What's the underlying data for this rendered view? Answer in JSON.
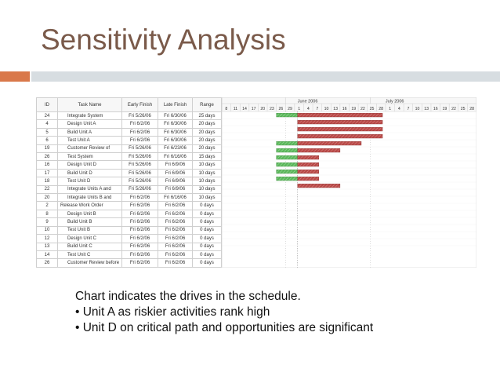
{
  "slide": {
    "title": "Sensitivity Analysis",
    "accent_color": "#d9784a",
    "rule_color": "#d7dde1"
  },
  "table": {
    "headers": [
      "ID",
      "Task Name",
      "Early Finish",
      "Late Finish",
      "Range"
    ],
    "rows": [
      {
        "id": "24",
        "name": "Integrate System",
        "early": "Fri 5/26/06",
        "late": "Fri 6/30/06",
        "range": "25 days",
        "indent": 1
      },
      {
        "id": "4",
        "name": "Design Unit A",
        "early": "Fri 6/2/06",
        "late": "Fri 6/30/06",
        "range": "20 days",
        "indent": 1
      },
      {
        "id": "5",
        "name": "Build Unit A",
        "early": "Fri 6/2/06",
        "late": "Fri 6/30/06",
        "range": "20 days",
        "indent": 1
      },
      {
        "id": "6",
        "name": "Test Unit A",
        "early": "Fri 6/2/06",
        "late": "Fri 6/30/06",
        "range": "20 days",
        "indent": 1
      },
      {
        "id": "19",
        "name": "Customer Review of",
        "early": "Fri 5/26/06",
        "late": "Fri 6/23/06",
        "range": "20 days",
        "indent": 1
      },
      {
        "id": "26",
        "name": "Test System",
        "early": "Fri 5/26/06",
        "late": "Fri 6/16/06",
        "range": "15 days",
        "indent": 1
      },
      {
        "id": "16",
        "name": "Design Unit D",
        "early": "Fri 5/26/06",
        "late": "Fri 6/9/06",
        "range": "10 days",
        "indent": 1
      },
      {
        "id": "17",
        "name": "Build Unit D",
        "early": "Fri 5/26/06",
        "late": "Fri 6/9/06",
        "range": "10 days",
        "indent": 1
      },
      {
        "id": "18",
        "name": "Test Unit D",
        "early": "Fri 5/26/06",
        "late": "Fri 6/9/06",
        "range": "10 days",
        "indent": 1
      },
      {
        "id": "22",
        "name": "Integrate Units A and",
        "early": "Fri 5/26/06",
        "late": "Fri 6/9/06",
        "range": "10 days",
        "indent": 1
      },
      {
        "id": "20",
        "name": "Integrate Units B and",
        "early": "Fri 6/2/06",
        "late": "Fri 6/16/06",
        "range": "10 days",
        "indent": 1
      },
      {
        "id": "2",
        "name": "Release Work Order",
        "early": "Fri 6/2/06",
        "late": "Fri 6/2/06",
        "range": "0 days",
        "indent": 0
      },
      {
        "id": "8",
        "name": "Design Unit B",
        "early": "Fri 6/2/06",
        "late": "Fri 6/2/06",
        "range": "0 days",
        "indent": 1
      },
      {
        "id": "9",
        "name": "Build Unit B",
        "early": "Fri 6/2/06",
        "late": "Fri 6/2/06",
        "range": "0 days",
        "indent": 1
      },
      {
        "id": "10",
        "name": "Test Unit B",
        "early": "Fri 6/2/06",
        "late": "Fri 6/2/06",
        "range": "0 days",
        "indent": 1
      },
      {
        "id": "12",
        "name": "Design Unit C",
        "early": "Fri 6/2/06",
        "late": "Fri 6/2/06",
        "range": "0 days",
        "indent": 1
      },
      {
        "id": "13",
        "name": "Build Unit C",
        "early": "Fri 6/2/06",
        "late": "Fri 6/2/06",
        "range": "0 days",
        "indent": 1
      },
      {
        "id": "14",
        "name": "Test Unit C",
        "early": "Fri 6/2/06",
        "late": "Fri 6/2/06",
        "range": "0 days",
        "indent": 1
      },
      {
        "id": "26",
        "name": "Customer Review before",
        "early": "Fri 6/2/06",
        "late": "Fri 6/2/06",
        "range": "0 days",
        "indent": 1
      }
    ]
  },
  "chart_data": {
    "type": "gantt",
    "month_labels": [
      "June 2006",
      "July 2006"
    ],
    "day_labels": [
      "8",
      "11",
      "14",
      "17",
      "20",
      "23",
      "26",
      "29",
      "1",
      "4",
      "7",
      "10",
      "13",
      "16",
      "19",
      "22",
      "25",
      "28",
      "1",
      "4",
      "7",
      "10",
      "13",
      "16",
      "19",
      "22",
      "25",
      "28"
    ],
    "status_line_label": "1",
    "green_color": "#5cb85c",
    "red_color": "#b94a48",
    "bars": [
      {
        "id": "24",
        "green": [
          "5/26/06",
          "6/2/06"
        ],
        "red": [
          "6/2/06",
          "6/30/06"
        ]
      },
      {
        "id": "4",
        "red": [
          "6/2/06",
          "6/30/06"
        ]
      },
      {
        "id": "5",
        "red": [
          "6/2/06",
          "6/30/06"
        ]
      },
      {
        "id": "6",
        "red": [
          "6/2/06",
          "6/30/06"
        ]
      },
      {
        "id": "19",
        "green": [
          "5/26/06",
          "6/2/06"
        ],
        "red": [
          "6/2/06",
          "6/23/06"
        ]
      },
      {
        "id": "26",
        "green": [
          "5/26/06",
          "6/2/06"
        ],
        "red": [
          "6/2/06",
          "6/16/06"
        ]
      },
      {
        "id": "16",
        "green": [
          "5/26/06",
          "6/2/06"
        ],
        "red": [
          "6/2/06",
          "6/9/06"
        ]
      },
      {
        "id": "17",
        "green": [
          "5/26/06",
          "6/2/06"
        ],
        "red": [
          "6/2/06",
          "6/9/06"
        ]
      },
      {
        "id": "18",
        "green": [
          "5/26/06",
          "6/2/06"
        ],
        "red": [
          "6/2/06",
          "6/9/06"
        ]
      },
      {
        "id": "22",
        "green": [
          "5/26/06",
          "6/2/06"
        ],
        "red": [
          "6/2/06",
          "6/9/06"
        ]
      },
      {
        "id": "20",
        "red": [
          "6/2/06",
          "6/16/06"
        ]
      }
    ]
  },
  "notes": {
    "lines": [
      "Chart indicates the drives in the schedule.",
      "• Unit A as riskier activities rank high",
      "• Unit D on critical path and opportunities are significant"
    ]
  }
}
